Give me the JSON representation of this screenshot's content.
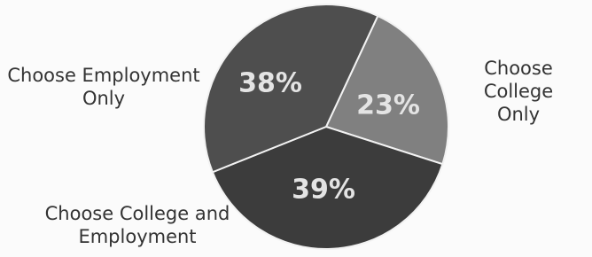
{
  "chart_data": {
    "type": "pie",
    "categories": [
      "Choose College Only",
      "Choose College and Employment",
      "Choose Employment Only"
    ],
    "values": [
      23,
      39,
      38
    ],
    "value_labels": [
      "23%",
      "39%",
      "38%"
    ],
    "colors": [
      "#808080",
      "#3c3c3c",
      "#4e4e4e"
    ]
  }
}
